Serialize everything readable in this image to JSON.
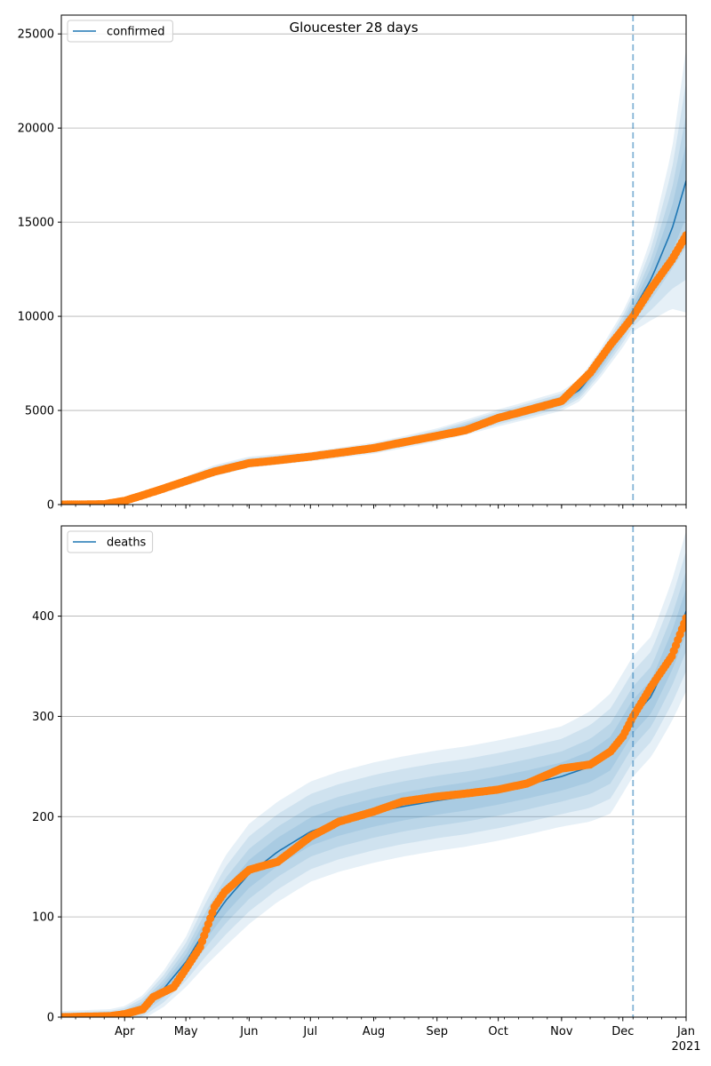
{
  "title": "Gloucester 28 days",
  "colors": {
    "model": "#1f77b4",
    "observed": "#ff7f0e",
    "band": "#1f77b4",
    "grid": "#b0b0b0",
    "cutoff": "#1f77b4"
  },
  "chart_data": [
    {
      "type": "line",
      "panel": "top",
      "series_name": "confirmed",
      "legend": "confirmed",
      "legend_position": "top-left",
      "x_range": [
        "2020-03-01",
        "2021-01-01"
      ],
      "ylim": [
        0,
        26000
      ],
      "y_ticks": [
        0,
        5000,
        10000,
        15000,
        20000,
        25000
      ],
      "grid": "horizontal",
      "forecast_start": "2020-12-06",
      "model": {
        "dates": [
          "2020-03-01",
          "2020-03-20",
          "2020-04-01",
          "2020-04-15",
          "2020-05-01",
          "2020-05-15",
          "2020-06-01",
          "2020-06-15",
          "2020-07-01",
          "2020-07-15",
          "2020-08-01",
          "2020-08-15",
          "2020-09-01",
          "2020-09-15",
          "2020-10-01",
          "2020-10-15",
          "2020-11-01",
          "2020-11-10",
          "2020-11-20",
          "2020-12-01",
          "2020-12-06",
          "2020-12-15",
          "2020-12-25",
          "2021-01-01"
        ],
        "values": [
          0,
          20,
          150,
          600,
          1250,
          1800,
          2250,
          2400,
          2550,
          2750,
          3000,
          3300,
          3700,
          4100,
          4600,
          5000,
          5500,
          6100,
          7500,
          9300,
          10300,
          12000,
          14600,
          17200
        ],
        "band_half_width": [
          50,
          60,
          100,
          150,
          250,
          300,
          300,
          280,
          260,
          280,
          300,
          320,
          350,
          400,
          450,
          480,
          520,
          600,
          750,
          950,
          1100,
          2200,
          4200,
          7000
        ]
      },
      "observed": {
        "dates": [
          "2020-03-01",
          "2020-03-22",
          "2020-04-01",
          "2020-04-10",
          "2020-04-20",
          "2020-05-01",
          "2020-05-15",
          "2020-06-01",
          "2020-06-15",
          "2020-07-01",
          "2020-07-15",
          "2020-08-01",
          "2020-08-15",
          "2020-09-01",
          "2020-09-15",
          "2020-10-01",
          "2020-10-15",
          "2020-11-01",
          "2020-11-15",
          "2020-11-25",
          "2020-12-01",
          "2020-12-06",
          "2020-12-15",
          "2020-12-25",
          "2021-01-01"
        ],
        "values": [
          0,
          20,
          200,
          500,
          850,
          1250,
          1750,
          2200,
          2350,
          2550,
          2750,
          3000,
          3300,
          3650,
          3950,
          4600,
          5000,
          5500,
          7000,
          8500,
          9300,
          10000,
          11500,
          13000,
          14300
        ]
      },
      "x_tick_labels": [
        "Apr",
        "May",
        "Jun",
        "Jul",
        "Aug",
        "Sep",
        "Oct",
        "Nov",
        "Dec",
        "Jan"
      ],
      "x_year_label": "2021"
    },
    {
      "type": "line",
      "panel": "bottom",
      "series_name": "deaths",
      "legend": "deaths",
      "legend_position": "top-left",
      "x_range": [
        "2020-03-01",
        "2021-01-01"
      ],
      "ylim": [
        0,
        490
      ],
      "y_ticks": [
        0,
        100,
        200,
        300,
        400
      ],
      "grid": "horizontal",
      "forecast_start": "2020-12-06",
      "model": {
        "dates": [
          "2020-03-01",
          "2020-03-25",
          "2020-04-01",
          "2020-04-10",
          "2020-04-20",
          "2020-05-01",
          "2020-05-10",
          "2020-05-20",
          "2020-06-01",
          "2020-06-15",
          "2020-07-01",
          "2020-07-15",
          "2020-08-01",
          "2020-08-15",
          "2020-09-01",
          "2020-09-15",
          "2020-10-01",
          "2020-10-15",
          "2020-11-01",
          "2020-11-15",
          "2020-11-25",
          "2020-12-06",
          "2020-12-15",
          "2020-12-25",
          "2021-01-01"
        ],
        "values": [
          0,
          1,
          3,
          10,
          28,
          55,
          85,
          115,
          143,
          165,
          185,
          195,
          204,
          210,
          216,
          220,
          226,
          232,
          240,
          250,
          263,
          300,
          320,
          365,
          405
        ],
        "band_half_width": [
          6,
          7,
          8,
          12,
          18,
          25,
          35,
          45,
          50,
          50,
          50,
          50,
          50,
          50,
          50,
          50,
          50,
          50,
          50,
          55,
          60,
          60,
          60,
          70,
          80
        ]
      },
      "observed": {
        "dates": [
          "2020-03-01",
          "2020-03-25",
          "2020-04-01",
          "2020-04-10",
          "2020-04-15",
          "2020-04-20",
          "2020-04-25",
          "2020-05-01",
          "2020-05-08",
          "2020-05-15",
          "2020-05-20",
          "2020-06-01",
          "2020-06-15",
          "2020-07-01",
          "2020-07-15",
          "2020-08-01",
          "2020-08-15",
          "2020-09-01",
          "2020-09-15",
          "2020-10-01",
          "2020-10-15",
          "2020-11-01",
          "2020-11-15",
          "2020-11-25",
          "2020-12-01",
          "2020-12-06",
          "2020-12-15",
          "2020-12-25",
          "2021-01-01"
        ],
        "values": [
          0,
          1,
          3,
          8,
          20,
          25,
          30,
          48,
          70,
          110,
          125,
          147,
          155,
          180,
          195,
          205,
          215,
          220,
          223,
          227,
          233,
          248,
          252,
          265,
          280,
          300,
          330,
          360,
          398
        ]
      },
      "x_tick_labels": [
        "Apr",
        "May",
        "Jun",
        "Jul",
        "Aug",
        "Sep",
        "Oct",
        "Nov",
        "Dec",
        "Jan"
      ],
      "x_year_label": "2021"
    }
  ]
}
